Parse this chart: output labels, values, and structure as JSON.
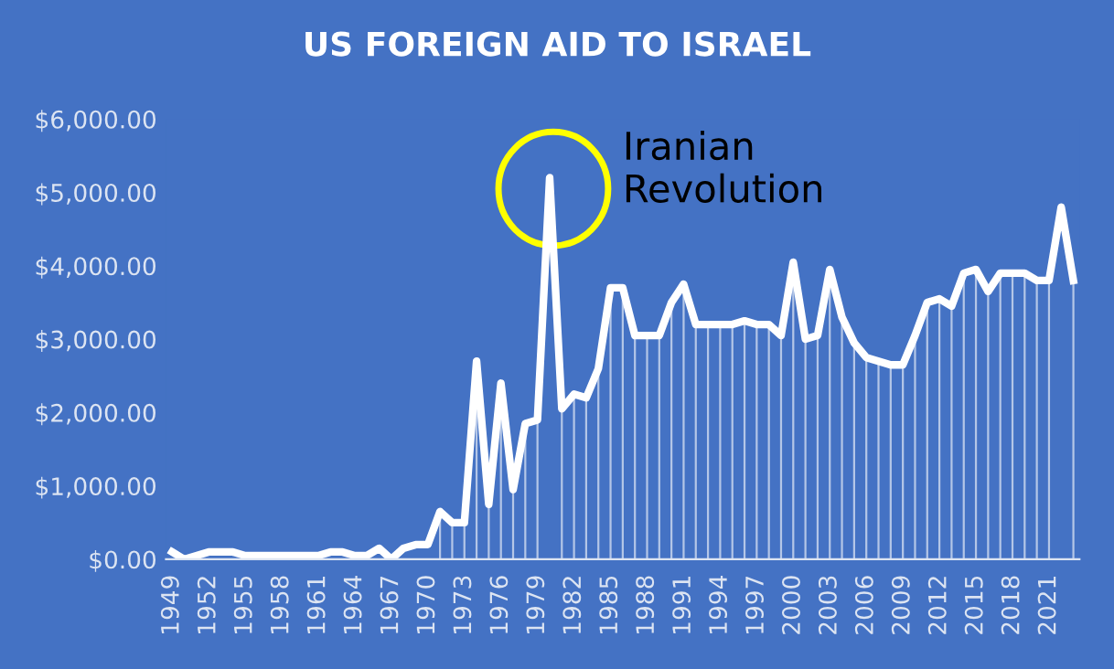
{
  "chart_data": {
    "type": "line",
    "title": "US FOREIGN AID TO ISRAEL",
    "categories": [
      "1949",
      null,
      null,
      "1952",
      null,
      null,
      "1955",
      null,
      null,
      "1958",
      null,
      null,
      "1961",
      null,
      null,
      "1964",
      null,
      null,
      "1967",
      null,
      null,
      "1970",
      null,
      null,
      "1973",
      null,
      null,
      "1976",
      null,
      null,
      "1979",
      null,
      null,
      "1982",
      null,
      null,
      "1985",
      null,
      null,
      "1988",
      null,
      null,
      "1991",
      null,
      null,
      "1994",
      null,
      null,
      "1997",
      null,
      null,
      "2000",
      null,
      null,
      "2003",
      null,
      null,
      "2006",
      null,
      null,
      "2009",
      null,
      null,
      "2012",
      null,
      null,
      "2015",
      null,
      null,
      "2018",
      null,
      null,
      "2021",
      null,
      null
    ],
    "series": [
      {
        "color": "#ffffff",
        "values": [
          100,
          0,
          50,
          100,
          100,
          100,
          50,
          50,
          50,
          50,
          50,
          50,
          50,
          100,
          100,
          50,
          50,
          150,
          0,
          150,
          200,
          200,
          650,
          500,
          500,
          2700,
          750,
          2400,
          950,
          1850,
          1900,
          5200,
          2050,
          2250,
          2200,
          2600,
          3700,
          3700,
          3050,
          3050,
          3050,
          3500,
          3750,
          3200,
          3200,
          3200,
          3200,
          3250,
          3200,
          3200,
          3050,
          4050,
          3000,
          3050,
          3950,
          3300,
          2950,
          2750,
          2700,
          2650,
          2650,
          3050,
          3500,
          3550,
          3450,
          3900,
          3950,
          3650,
          3900,
          3900,
          3900,
          3800,
          3800,
          4800,
          3800
        ],
        "errors": [
          null,
          null,
          null,
          null,
          null,
          null,
          null,
          null,
          null,
          null,
          null,
          null,
          null,
          null,
          null,
          null,
          null,
          null,
          null,
          null,
          null,
          null,
          [
            0,
            650
          ],
          [
            0,
            500
          ],
          [
            0,
            500
          ],
          [
            0,
            2700
          ],
          [
            0,
            750
          ],
          [
            0,
            2400
          ],
          [
            0,
            950
          ],
          [
            0,
            1850
          ],
          [
            0,
            1900
          ],
          null,
          [
            0,
            2050
          ],
          [
            0,
            2250
          ],
          [
            0,
            2200
          ],
          [
            0,
            2600
          ],
          [
            0,
            3700
          ],
          [
            0,
            3700
          ],
          [
            0,
            3050
          ],
          [
            0,
            3050
          ],
          [
            0,
            3050
          ],
          [
            0,
            3500
          ],
          [
            0,
            3750
          ],
          [
            0,
            3200
          ],
          [
            0,
            3200
          ],
          [
            0,
            3200
          ],
          [
            0,
            3200
          ],
          [
            0,
            3250
          ],
          [
            0,
            3200
          ],
          [
            0,
            3200
          ],
          [
            0,
            3050
          ],
          [
            0,
            4050
          ],
          [
            0,
            3000
          ],
          [
            0,
            3050
          ],
          [
            0,
            3950
          ],
          [
            0,
            3300
          ],
          [
            0,
            2950
          ],
          [
            0,
            2750
          ],
          [
            0,
            2700
          ],
          [
            0,
            2650
          ],
          [
            0,
            2650
          ],
          [
            0,
            3050
          ],
          [
            0,
            3500
          ],
          [
            0,
            3550
          ],
          [
            0,
            3450
          ],
          [
            0,
            3900
          ],
          [
            0,
            3950
          ],
          [
            0,
            3650
          ],
          [
            0,
            3900
          ],
          [
            0,
            3900
          ],
          [
            0,
            3900
          ],
          [
            0,
            3800
          ],
          [
            0,
            3800
          ],
          null,
          [
            0,
            3800
          ]
        ]
      }
    ],
    "ylim": [
      0,
      6000
    ],
    "yticks": [
      {
        "value": 0,
        "label": "$0.00"
      },
      {
        "value": 1000,
        "label": "$1,000.00"
      },
      {
        "value": 2000,
        "label": "$2,000.00"
      },
      {
        "value": 3000,
        "label": "$3,000.00"
      },
      {
        "value": 4000,
        "label": "$4,000.00"
      },
      {
        "value": 5000,
        "label": "$5,000.00"
      },
      {
        "value": 6000,
        "label": "$6,000.00"
      }
    ],
    "annotations": [
      "Iranian Revolution"
    ],
    "grid": false,
    "legend": false,
    "marker": "none",
    "line_style": "solid"
  }
}
